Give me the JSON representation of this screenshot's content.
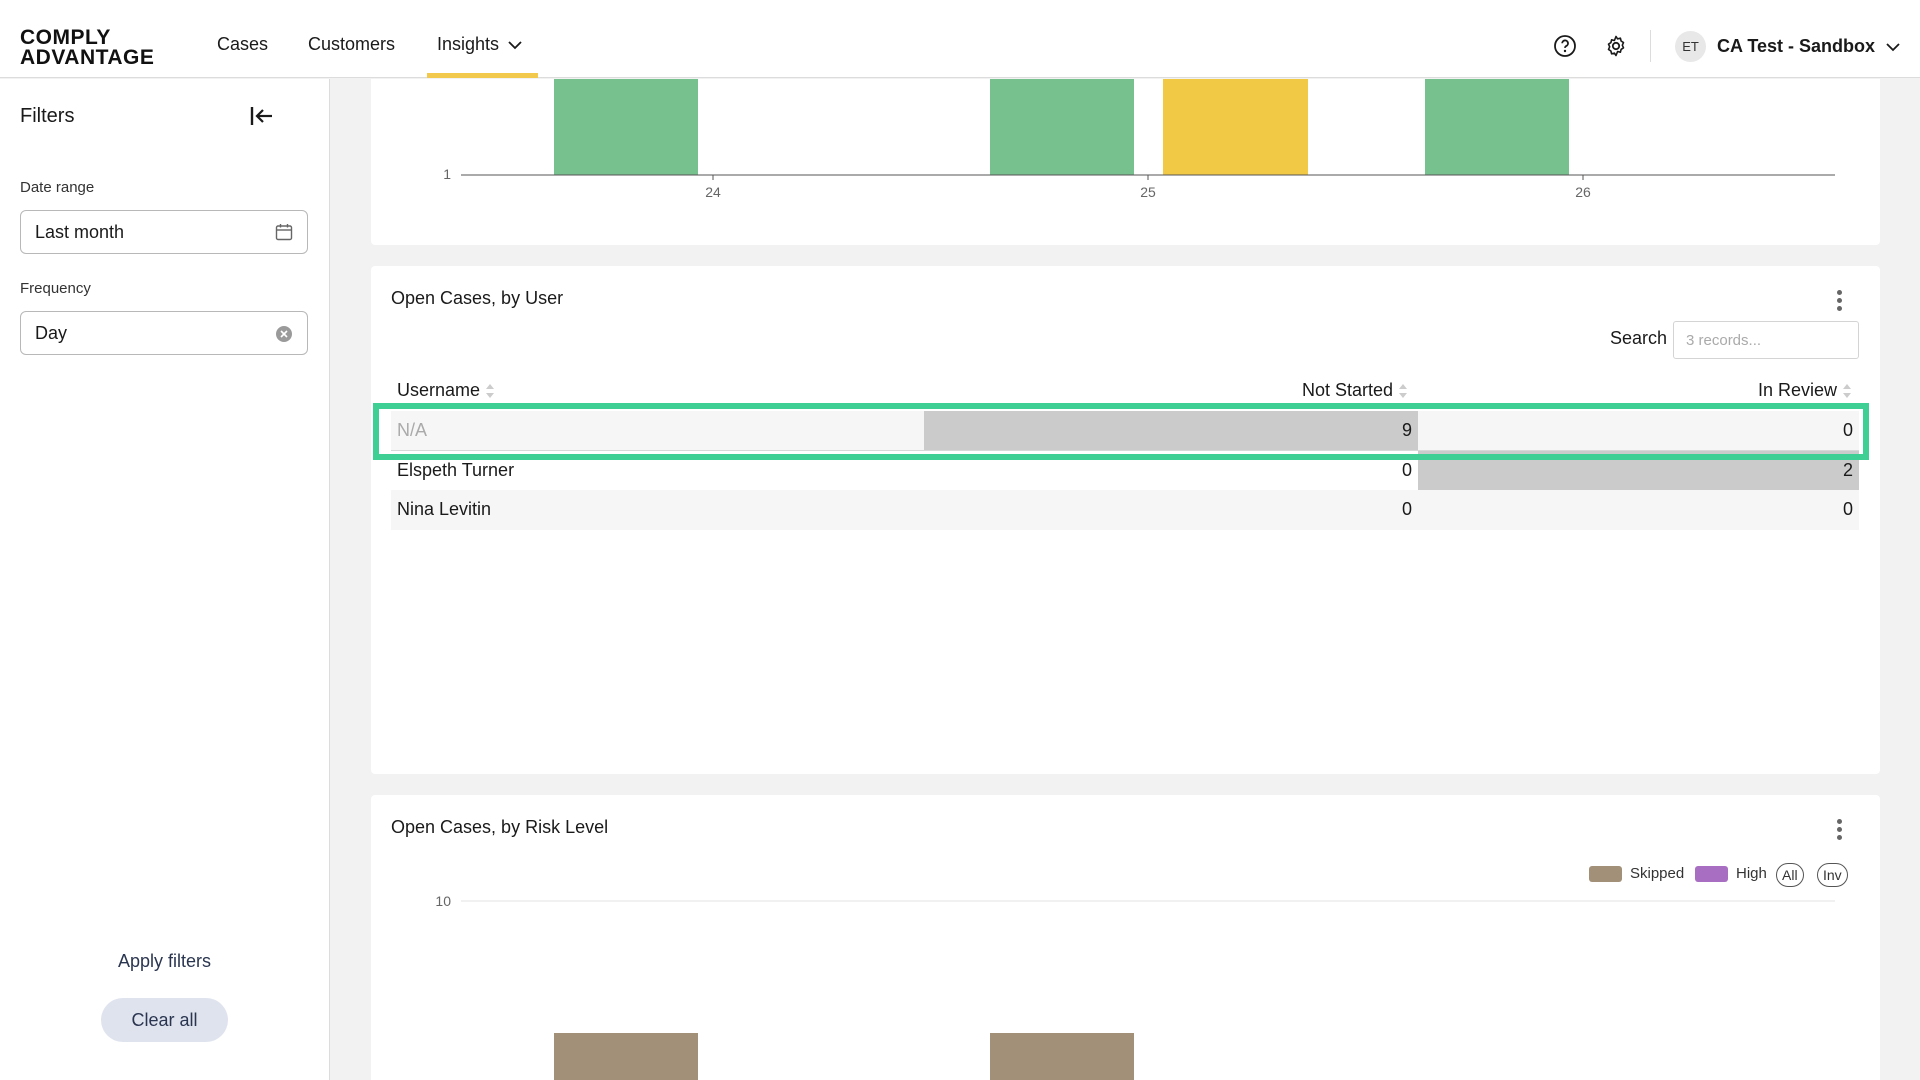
{
  "header": {
    "logo_line1": "COMPLY",
    "logo_line2": "ADVANTAGE",
    "nav": {
      "cases": "Cases",
      "customers": "Customers",
      "insights": "Insights"
    },
    "avatar_initials": "ET",
    "account_name": "CA Test - Sandbox"
  },
  "sidebar": {
    "title": "Filters",
    "date_range_label": "Date range",
    "date_range_value": "Last month",
    "frequency_label": "Frequency",
    "frequency_value": "Day",
    "apply_label": "Apply filters",
    "clear_label": "Clear all"
  },
  "top_chart": {
    "y_tick": "1",
    "x_ticks": [
      "24",
      "25",
      "26"
    ],
    "colors": {
      "green": "#77c18f",
      "yellow": "#f2c945"
    }
  },
  "user_table": {
    "title": "Open Cases, by User",
    "search_label": "Search",
    "search_placeholder": "3 records...",
    "columns": [
      "Username",
      "Not Started",
      "In Review"
    ],
    "rows": [
      {
        "user": "N/A",
        "not_started": "9",
        "in_review": "0"
      },
      {
        "user": "Elspeth Turner",
        "not_started": "0",
        "in_review": "2"
      },
      {
        "user": "Nina Levitin",
        "not_started": "0",
        "in_review": "0"
      }
    ],
    "highlight_color": "#3ecf95"
  },
  "risk_chart": {
    "title": "Open Cases, by Risk Level",
    "legend": [
      {
        "label": "Skipped",
        "color": "#a39079"
      },
      {
        "label": "High",
        "color": "#a86ec2"
      }
    ],
    "pill_all": "All",
    "pill_inv": "Inv",
    "y_tick": "10"
  }
}
